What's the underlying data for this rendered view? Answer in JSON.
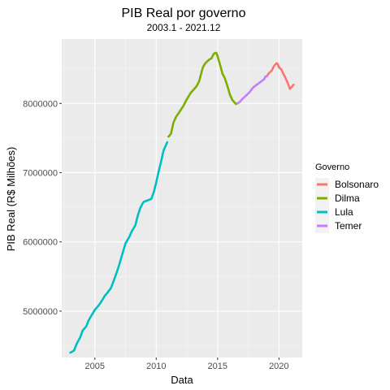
{
  "chart_data": {
    "type": "line",
    "title": "PIB Real por governo",
    "subtitle": "2003.1 - 2021.12",
    "xlabel": "Data",
    "ylabel": "PIB Real (R$ Milhões)",
    "xlim": [
      2002.3,
      2021.9
    ],
    "ylim": [
      4330000,
      8930000
    ],
    "x_ticks": [
      2005,
      2010,
      2015,
      2020
    ],
    "x_tick_labels": [
      "2005",
      "2010",
      "2015",
      "2020"
    ],
    "y_ticks": [
      5000000,
      6000000,
      7000000,
      8000000
    ],
    "y_tick_labels": [
      "5000000",
      "6000000",
      "7000000",
      "8000000"
    ],
    "grid": true,
    "legend": {
      "title": "Governo",
      "position": "right"
    },
    "colors": {
      "panel": "#ebebeb",
      "grid_major": "#ffffff",
      "grid_minor": "#f5f5f5"
    },
    "series": [
      {
        "name": "Bolsonaro",
        "color": "#F8766D",
        "points": [
          [
            2019.0,
            8390000
          ],
          [
            2019.2,
            8440000
          ],
          [
            2019.4,
            8470000
          ],
          [
            2019.6,
            8540000
          ],
          [
            2019.8,
            8580000
          ],
          [
            2019.9,
            8570000
          ],
          [
            2020.0,
            8520000
          ],
          [
            2020.2,
            8490000
          ],
          [
            2020.3,
            8450000
          ],
          [
            2020.5,
            8380000
          ],
          [
            2020.7,
            8300000
          ],
          [
            2020.9,
            8210000
          ],
          [
            2021.0,
            8230000
          ],
          [
            2021.1,
            8250000
          ],
          [
            2021.2,
            8270000
          ]
        ]
      },
      {
        "name": "Dilma",
        "color": "#7CAE00",
        "points": [
          [
            2011.0,
            7520000
          ],
          [
            2011.2,
            7560000
          ],
          [
            2011.4,
            7720000
          ],
          [
            2011.6,
            7800000
          ],
          [
            2011.9,
            7880000
          ],
          [
            2012.2,
            7960000
          ],
          [
            2012.5,
            8060000
          ],
          [
            2012.8,
            8150000
          ],
          [
            2013.0,
            8190000
          ],
          [
            2013.3,
            8250000
          ],
          [
            2013.5,
            8320000
          ],
          [
            2013.8,
            8520000
          ],
          [
            2014.0,
            8580000
          ],
          [
            2014.3,
            8630000
          ],
          [
            2014.5,
            8650000
          ],
          [
            2014.7,
            8720000
          ],
          [
            2014.9,
            8730000
          ],
          [
            2015.0,
            8680000
          ],
          [
            2015.2,
            8560000
          ],
          [
            2015.4,
            8430000
          ],
          [
            2015.6,
            8360000
          ],
          [
            2015.8,
            8250000
          ],
          [
            2016.0,
            8130000
          ],
          [
            2016.2,
            8050000
          ],
          [
            2016.5,
            7990000
          ],
          [
            2016.6,
            8000000
          ]
        ]
      },
      {
        "name": "Lula",
        "color": "#00BFC4",
        "points": [
          [
            2003.0,
            4400000
          ],
          [
            2003.3,
            4430000
          ],
          [
            2003.5,
            4520000
          ],
          [
            2003.8,
            4620000
          ],
          [
            2004.0,
            4720000
          ],
          [
            2004.3,
            4780000
          ],
          [
            2004.5,
            4870000
          ],
          [
            2004.8,
            4960000
          ],
          [
            2005.0,
            5020000
          ],
          [
            2005.3,
            5080000
          ],
          [
            2005.5,
            5130000
          ],
          [
            2005.8,
            5220000
          ],
          [
            2006.0,
            5260000
          ],
          [
            2006.3,
            5330000
          ],
          [
            2006.5,
            5420000
          ],
          [
            2006.8,
            5570000
          ],
          [
            2007.0,
            5680000
          ],
          [
            2007.3,
            5860000
          ],
          [
            2007.5,
            5980000
          ],
          [
            2007.8,
            6070000
          ],
          [
            2008.0,
            6150000
          ],
          [
            2008.3,
            6240000
          ],
          [
            2008.5,
            6380000
          ],
          [
            2008.7,
            6490000
          ],
          [
            2008.9,
            6560000
          ],
          [
            2009.0,
            6580000
          ],
          [
            2009.3,
            6600000
          ],
          [
            2009.6,
            6620000
          ],
          [
            2009.8,
            6720000
          ],
          [
            2010.0,
            6860000
          ],
          [
            2010.2,
            7020000
          ],
          [
            2010.4,
            7160000
          ],
          [
            2010.6,
            7320000
          ],
          [
            2010.9,
            7440000
          ]
        ]
      },
      {
        "name": "Temer",
        "color": "#C77CFF",
        "points": [
          [
            2016.6,
            8000000
          ],
          [
            2016.8,
            8020000
          ],
          [
            2017.0,
            8060000
          ],
          [
            2017.3,
            8110000
          ],
          [
            2017.6,
            8160000
          ],
          [
            2017.9,
            8230000
          ],
          [
            2018.2,
            8270000
          ],
          [
            2018.5,
            8310000
          ],
          [
            2018.8,
            8350000
          ],
          [
            2018.9,
            8390000
          ],
          [
            2019.0,
            8390000
          ]
        ]
      }
    ]
  }
}
